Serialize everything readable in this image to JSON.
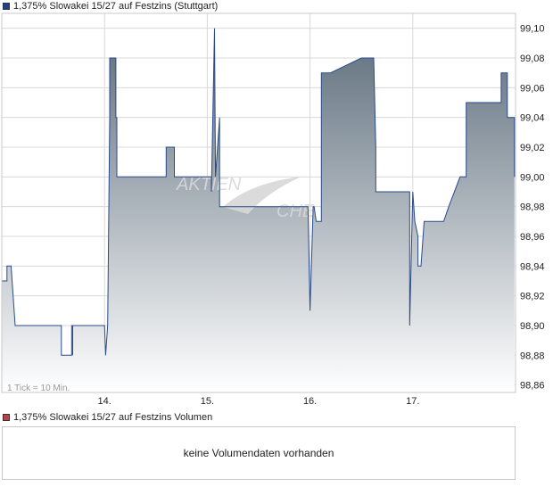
{
  "price_panel": {
    "legend_label": "1,375% Slowakei 15/27 auf Festzins (Stuttgart)",
    "legend_color": "#1f3f8f",
    "note": "1 Tick = 10 Min."
  },
  "volume_panel": {
    "legend_label": "1,375% Slowakei 15/27 auf Festzins Volumen",
    "legend_color": "#c0404a",
    "message": "keine Volumendaten vorhanden"
  },
  "colors": {
    "line": "#2a4a8a",
    "fill_top": "#5e6e7c",
    "fill_bottom": "#ffffff",
    "grid": "#d8d8d8"
  },
  "chart_data": {
    "type": "area",
    "xlabel": "",
    "ylabel": "",
    "grid": true,
    "x_ticks": [
      "14.",
      "15.",
      "16.",
      "17."
    ],
    "x_tick_positions": [
      1,
      2,
      3,
      4
    ],
    "xlim": [
      0,
      5
    ],
    "ylim": [
      98.855,
      99.11
    ],
    "y_ticks": [
      98.86,
      98.88,
      98.9,
      98.92,
      98.94,
      98.96,
      98.98,
      99.0,
      99.02,
      99.04,
      99.06,
      99.08,
      99.1
    ],
    "y_tick_labels": [
      "98,86",
      "98,88",
      "98,90",
      "98,92",
      "98,94",
      "98,96",
      "98,98",
      "99,00",
      "99,02",
      "99,04",
      "99,06",
      "99,08",
      "99,10"
    ],
    "x": [
      0.0,
      0.05,
      0.05,
      0.09,
      0.13,
      0.13,
      0.15,
      0.58,
      0.58,
      0.68,
      0.68,
      0.69,
      0.69,
      0.69,
      1.0,
      1.01,
      1.03,
      1.05,
      1.05,
      1.11,
      1.11,
      1.12,
      1.12,
      1.13,
      1.13,
      1.18,
      1.6,
      1.6,
      1.68,
      1.68,
      1.7,
      2.04,
      2.04,
      2.07,
      2.07,
      2.08,
      2.12,
      2.12,
      2.15,
      2.15,
      2.98,
      3.0,
      3.03,
      3.04,
      3.06,
      3.06,
      3.11,
      3.11,
      3.14,
      3.15,
      3.15,
      3.2,
      3.2,
      3.5,
      3.58,
      3.58,
      3.62,
      3.64,
      3.64,
      3.95,
      3.97,
      3.97,
      4.0,
      4.0,
      4.02,
      4.05,
      4.05,
      4.08,
      4.11,
      4.11,
      4.14,
      4.3,
      4.3,
      4.35,
      4.35,
      4.46,
      4.46,
      4.52,
      4.52,
      4.67,
      4.67,
      4.86,
      4.86,
      4.92,
      4.92,
      4.99,
      4.99
    ],
    "y": [
      98.93,
      98.93,
      98.94,
      98.94,
      98.9,
      98.9,
      98.9,
      98.9,
      98.88,
      98.88,
      98.9,
      98.9,
      98.88,
      98.9,
      98.9,
      98.88,
      98.9,
      99.04,
      99.08,
      99.08,
      99.04,
      99.04,
      99.0,
      99.0,
      99.0,
      99.0,
      99.0,
      99.02,
      99.02,
      99.0,
      99.0,
      99.0,
      98.99,
      99.1,
      99.1,
      99.0,
      99.04,
      98.98,
      98.98,
      98.98,
      98.98,
      98.91,
      98.98,
      98.98,
      98.97,
      98.97,
      98.97,
      99.07,
      99.07,
      99.07,
      99.07,
      99.07,
      99.07,
      99.08,
      99.08,
      99.08,
      99.08,
      99.02,
      98.99,
      98.99,
      98.99,
      98.9,
      98.99,
      98.99,
      98.97,
      98.96,
      98.94,
      98.94,
      98.97,
      98.97,
      98.97,
      98.97,
      98.97,
      98.98,
      98.98,
      99.0,
      99.0,
      99.0,
      99.05,
      99.05,
      99.05,
      99.05,
      99.07,
      99.07,
      99.04,
      99.04,
      99.0
    ]
  }
}
